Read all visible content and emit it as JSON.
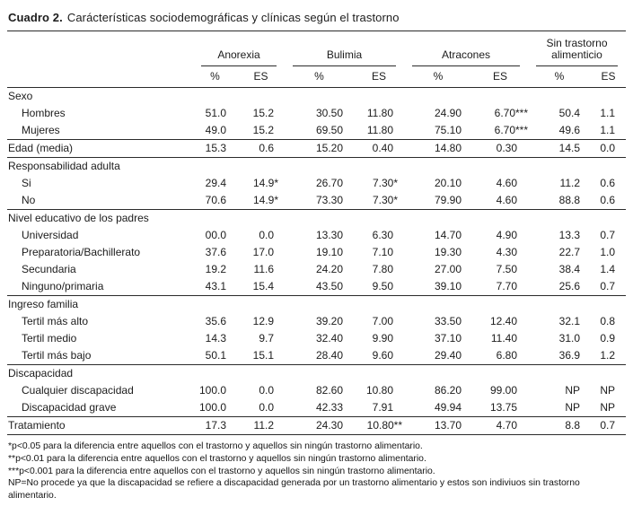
{
  "title": {
    "label": "Cuadro 2.",
    "text": "Carácterísticas sociodemográficas y clínicas según el trastorno"
  },
  "table": {
    "groups": [
      {
        "name": "Anorexia"
      },
      {
        "name": "Bulimia"
      },
      {
        "name": "Atracones"
      },
      {
        "name": "Sin trastorno alimenticio"
      }
    ],
    "subheaders": [
      "%",
      "ES"
    ],
    "sections": [
      {
        "header": "Sexo",
        "rows": [
          {
            "label": "Hombres",
            "indent": true,
            "values": [
              "51.0",
              "15.2",
              "30.50",
              "11.80",
              "24.90",
              "6.70***",
              "50.4",
              "1.1"
            ]
          },
          {
            "label": "Mujeres",
            "indent": true,
            "values": [
              "49.0",
              "15.2",
              "69.50",
              "11.80",
              "75.10",
              "6.70***",
              "49.6",
              "1.1"
            ]
          }
        ]
      },
      {
        "header": null,
        "rows": [
          {
            "label": "Edad (media)",
            "indent": false,
            "values": [
              "15.3",
              "0.6",
              "15.20",
              "0.40",
              "14.80",
              "0.30",
              "14.5",
              "0.0"
            ]
          }
        ]
      },
      {
        "header": "Responsabilidad adulta",
        "rows": [
          {
            "label": "Si",
            "indent": true,
            "values": [
              "29.4",
              "14.9*",
              "26.70",
              "7.30*",
              "20.10",
              "4.60",
              "11.2",
              "0.6"
            ]
          },
          {
            "label": "No",
            "indent": true,
            "values": [
              "70.6",
              "14.9*",
              "73.30",
              "7.30*",
              "79.90",
              "4.60",
              "88.8",
              "0.6"
            ]
          }
        ]
      },
      {
        "header": "Nivel educativo de los padres",
        "rows": [
          {
            "label": "Universidad",
            "indent": true,
            "values": [
              "00.0",
              "0.0",
              "13.30",
              "6.30",
              "14.70",
              "4.90",
              "13.3",
              "0.7"
            ]
          },
          {
            "label": "Preparatoria/Bachillerato",
            "indent": true,
            "values": [
              "37.6",
              "17.0",
              "19.10",
              "7.10",
              "19.30",
              "4.30",
              "22.7",
              "1.0"
            ]
          },
          {
            "label": "Secundaria",
            "indent": true,
            "values": [
              "19.2",
              "11.6",
              "24.20",
              "7.80",
              "27.00",
              "7.50",
              "38.4",
              "1.4"
            ]
          },
          {
            "label": "Ninguno/primaria",
            "indent": true,
            "values": [
              "43.1",
              "15.4",
              "43.50",
              "9.50",
              "39.10",
              "7.70",
              "25.6",
              "0.7"
            ]
          }
        ]
      },
      {
        "header": "Ingreso familia",
        "rows": [
          {
            "label": "Tertil más alto",
            "indent": true,
            "values": [
              "35.6",
              "12.9",
              "39.20",
              "7.00",
              "33.50",
              "12.40",
              "32.1",
              "0.8"
            ]
          },
          {
            "label": "Tertil medio",
            "indent": true,
            "values": [
              "14.3",
              "9.7",
              "32.40",
              "9.90",
              "37.10",
              "11.40",
              "31.0",
              "0.9"
            ]
          },
          {
            "label": "Tertil más bajo",
            "indent": true,
            "values": [
              "50.1",
              "15.1",
              "28.40",
              "9.60",
              "29.40",
              "6.80",
              "36.9",
              "1.2"
            ]
          }
        ]
      },
      {
        "header": "Discapacidad",
        "rows": [
          {
            "label": "Cualquier discapacidad",
            "indent": true,
            "values": [
              "100.0",
              "0.0",
              "82.60",
              "10.80",
              "86.20",
              "99.00",
              "NP",
              "NP"
            ]
          },
          {
            "label": "Discapacidad grave",
            "indent": true,
            "values": [
              "100.0",
              "0.0",
              "42.33",
              "7.91",
              "49.94",
              "13.75",
              "NP",
              "NP"
            ]
          }
        ]
      },
      {
        "header": null,
        "rows": [
          {
            "label": "Tratamiento",
            "indent": false,
            "values": [
              "17.3",
              "11.2",
              "24.30",
              "10.80**",
              "13.70",
              "4.70",
              "8.8",
              "0.7"
            ]
          }
        ]
      }
    ],
    "footnotes": [
      "*p<0.05 para la diferencia entre aquellos con el trastorno y aquellos sin ningún trastorno alimentario.",
      "**p<0.01 para la diferencia entre aquellos con el trastorno y aquellos sin ningún trastorno alimentario.",
      "***p<0.001 para la diferencia entre aquellos con el trastorno y aquellos sin ningún trastorno alimentario.",
      "NP=No procede ya que la discapacidad se refiere a discapacidad generada por un trastorno alimentario y estos son indiviuos sin trastorno alimentario."
    ]
  }
}
